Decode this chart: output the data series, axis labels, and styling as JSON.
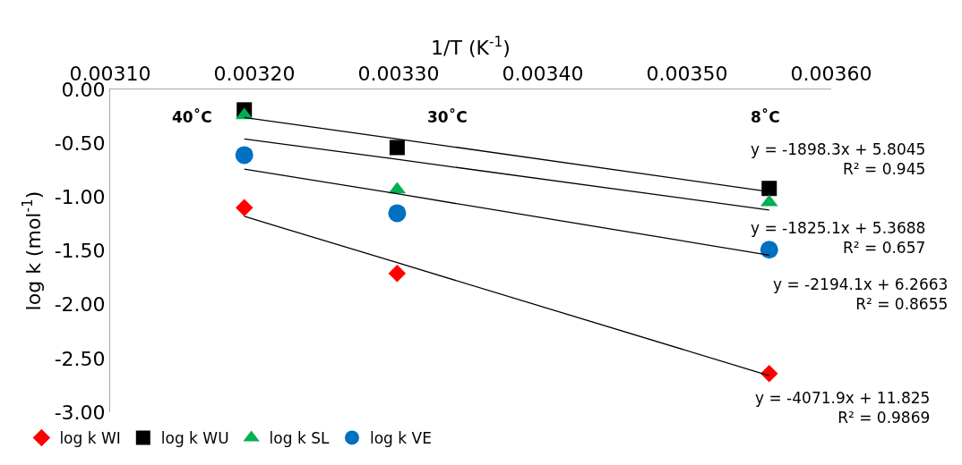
{
  "chart_data": {
    "type": "scatter",
    "xlabel": "1/T (K$^{-1}$)",
    "ylabel": "log k (mol$^{-1}$)",
    "x": [
      0.003193,
      0.003299,
      0.003557
    ],
    "series": [
      {
        "name": "log k WI",
        "color": "#ff0000",
        "marker": "diamond",
        "values": [
          -1.1,
          -1.71,
          -2.64
        ]
      },
      {
        "name": "log k WU",
        "color": "#000000",
        "marker": "square",
        "values": [
          -0.19,
          -0.54,
          -0.92
        ]
      },
      {
        "name": "log k SL",
        "color": "#00b050",
        "marker": "triangle",
        "values": [
          -0.24,
          -0.93,
          -1.05
        ]
      },
      {
        "name": "log k VE",
        "color": "#0070c0",
        "marker": "circle",
        "values": [
          -0.61,
          -1.15,
          -1.49
        ]
      },
      {
        "type": "line",
        "color": "#000000",
        "marker": "none",
        "values": [
          -1.18,
          -1.61,
          -2.66
        ]
      },
      {
        "type": "line",
        "color": "#000000",
        "marker": "none",
        "values": [
          -0.26,
          -0.46,
          -0.95
        ]
      },
      {
        "type": "line",
        "color": "#000000",
        "marker": "none",
        "values": [
          -0.46,
          -0.65,
          -1.12
        ]
      },
      {
        "type": "line",
        "color": "#000000",
        "marker": "none",
        "values": [
          -0.74,
          -0.97,
          -1.54
        ]
      }
    ],
    "xlim": [
      0.0031,
      0.0036
    ],
    "xticks": [
      {
        "value": 0.0031,
        "label": "0.00310"
      },
      {
        "value": 0.0032,
        "label": "0.00320"
      },
      {
        "value": 0.0033,
        "label": "0.00330"
      },
      {
        "value": 0.0034,
        "label": "0.00340"
      },
      {
        "value": 0.0035,
        "label": "0.00350"
      },
      {
        "value": 0.0036,
        "label": "0.00360"
      }
    ],
    "ylim": [
      -3,
      0
    ],
    "yticks": [
      {
        "value": 0,
        "label": "0.00"
      },
      {
        "value": -0.5,
        "label": "-0.50"
      },
      {
        "value": -1,
        "label": "-1.00"
      },
      {
        "value": -1.5,
        "label": "-1.50"
      },
      {
        "value": -2,
        "label": "-2.00"
      },
      {
        "value": -2.5,
        "label": "-2.50"
      },
      {
        "value": -3,
        "label": "-3.00"
      }
    ],
    "annotations": [
      "40˚C",
      "30˚C",
      "8˚C",
      "y = -1898.3x + 5.8045\nR² = 0.945",
      "y = -1825.1x + 5.3688\nR² = 0.657",
      "y = -2194.1x + 6.2663\nR² = 0.8655",
      "y = -4071.9x + 11.825\nR² = 0.9869"
    ],
    "grid": false,
    "legend": "bottom left"
  }
}
